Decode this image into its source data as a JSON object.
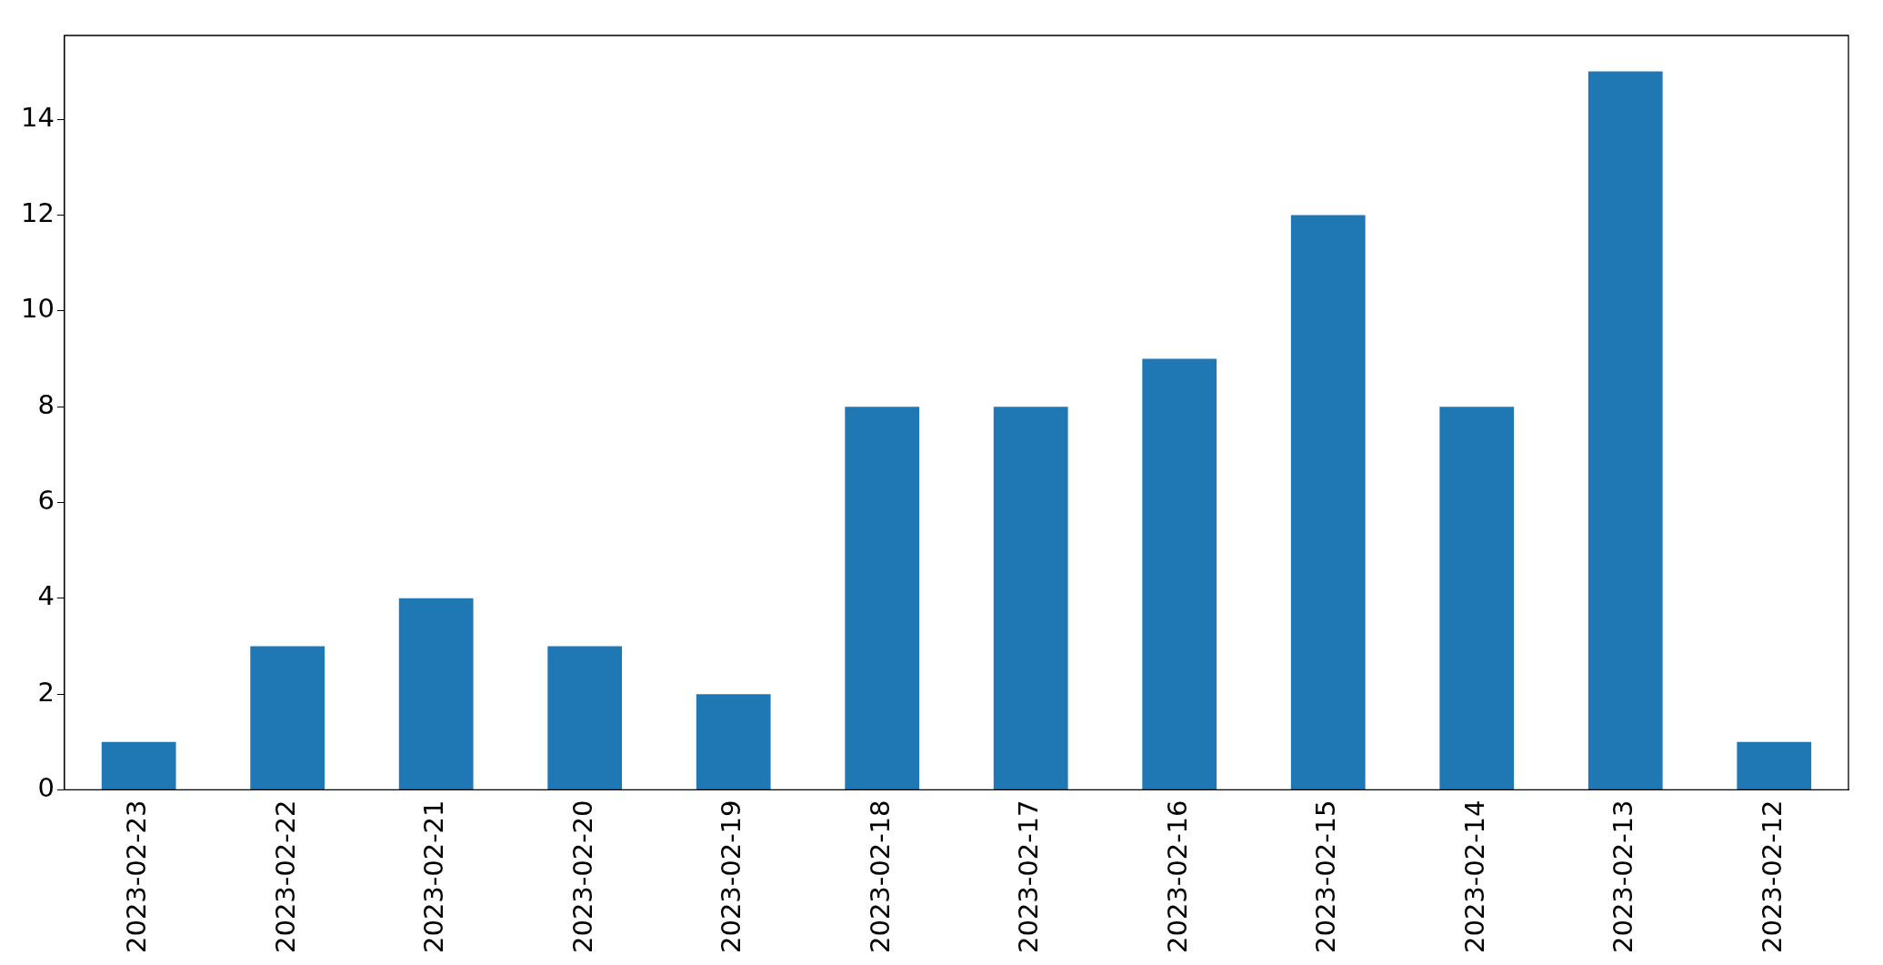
{
  "chart_data": {
    "type": "bar",
    "categories": [
      "2023-02-23",
      "2023-02-22",
      "2023-02-21",
      "2023-02-20",
      "2023-02-19",
      "2023-02-18",
      "2023-02-17",
      "2023-02-16",
      "2023-02-15",
      "2023-02-14",
      "2023-02-13",
      "2023-02-12"
    ],
    "values": [
      1,
      3,
      4,
      3,
      2,
      8,
      8,
      9,
      12,
      8,
      15,
      1
    ],
    "color": "#1f77b4",
    "ylim": [
      0,
      15.75
    ],
    "yticks": [
      0,
      2,
      4,
      6,
      8,
      10,
      12,
      14
    ],
    "grid": false,
    "legend": false
  }
}
